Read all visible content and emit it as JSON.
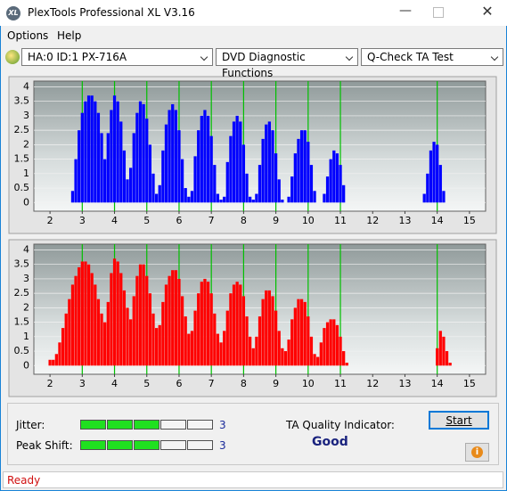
{
  "window": {
    "title": "PlexTools Professional XL V3.16",
    "icon": "XL"
  },
  "menu": [
    "Options",
    "Help"
  ],
  "toolbar": {
    "drive": "HA:0 ID:1  PX-716A",
    "function": "DVD Diagnostic Functions",
    "test": "Q-Check TA Test"
  },
  "chart_data": [
    {
      "type": "bar",
      "color": "#0000ff",
      "marker_color": "#00c000",
      "markers": [
        3,
        4,
        5,
        6,
        7,
        8,
        9,
        10,
        11,
        14
      ],
      "xlim": [
        1.5,
        15.5
      ],
      "xticks": [
        2,
        3,
        4,
        5,
        6,
        7,
        8,
        9,
        10,
        11,
        12,
        13,
        14,
        15
      ],
      "ylim": [
        -0.3,
        4.2
      ],
      "yticks": [
        0,
        0.5,
        1,
        1.5,
        2,
        2.5,
        3,
        3.5,
        4
      ],
      "grid": true,
      "x": [
        2.6,
        2.7,
        2.8,
        2.9,
        3.0,
        3.1,
        3.2,
        3.3,
        3.4,
        3.5,
        3.6,
        3.7,
        3.8,
        3.9,
        4.0,
        4.1,
        4.2,
        4.3,
        4.4,
        4.5,
        4.6,
        4.7,
        4.8,
        4.9,
        5.0,
        5.1,
        5.2,
        5.3,
        5.4,
        5.5,
        5.6,
        5.7,
        5.8,
        5.9,
        6.0,
        6.1,
        6.2,
        6.3,
        6.4,
        6.5,
        6.6,
        6.7,
        6.8,
        6.9,
        7.0,
        7.1,
        7.2,
        7.3,
        7.4,
        7.5,
        7.6,
        7.7,
        7.8,
        7.9,
        8.0,
        8.1,
        8.2,
        8.3,
        8.4,
        8.5,
        8.6,
        8.7,
        8.8,
        8.9,
        9.0,
        9.1,
        9.2,
        9.3,
        9.4,
        9.5,
        9.6,
        9.7,
        9.8,
        9.9,
        10.0,
        10.1,
        10.2,
        10.3,
        10.4,
        10.5,
        10.6,
        10.7,
        10.8,
        10.9,
        11.0,
        11.1,
        11.2,
        13.6,
        13.7,
        13.8,
        13.9,
        14.0,
        14.1,
        14.2,
        14.3
      ],
      "values": [
        0,
        0.4,
        1.5,
        2.5,
        3.1,
        3.5,
        3.7,
        3.7,
        3.5,
        3.1,
        2.4,
        1.5,
        2.4,
        3.2,
        3.7,
        3.5,
        2.8,
        1.8,
        0.8,
        1.2,
        2.4,
        3.1,
        3.5,
        3.4,
        2.9,
        2.0,
        1.0,
        0.3,
        0.6,
        1.8,
        2.7,
        3.2,
        3.4,
        3.2,
        2.5,
        1.5,
        0.5,
        0.2,
        0.4,
        1.6,
        2.5,
        3.0,
        3.2,
        3.0,
        2.3,
        1.3,
        0.3,
        0.1,
        0.2,
        1.4,
        2.3,
        2.8,
        3.0,
        2.8,
        2.0,
        1.0,
        0.2,
        0.1,
        0.3,
        1.3,
        2.2,
        2.7,
        2.8,
        2.5,
        1.7,
        0.8,
        0.1,
        0,
        0.2,
        0.9,
        1.7,
        2.2,
        2.5,
        2.5,
        2.1,
        1.3,
        0.4,
        0,
        0,
        0.3,
        0.9,
        1.5,
        1.8,
        1.7,
        1.3,
        0.6,
        0,
        0.3,
        1.0,
        1.8,
        2.1,
        2.0,
        1.3,
        0.4,
        0
      ]
    },
    {
      "type": "bar",
      "color": "#ff0000",
      "marker_color": "#00c000",
      "markers": [
        3,
        4,
        5,
        6,
        7,
        8,
        9,
        10,
        11,
        14
      ],
      "xlim": [
        1.5,
        15.5
      ],
      "xticks": [
        2,
        3,
        4,
        5,
        6,
        7,
        8,
        9,
        10,
        11,
        12,
        13,
        14,
        15
      ],
      "ylim": [
        -0.3,
        4.2
      ],
      "yticks": [
        0,
        0.5,
        1,
        1.5,
        2,
        2.5,
        3,
        3.5,
        4
      ],
      "grid": true,
      "x": [
        2.0,
        2.1,
        2.2,
        2.3,
        2.4,
        2.5,
        2.6,
        2.7,
        2.8,
        2.9,
        3.0,
        3.1,
        3.2,
        3.3,
        3.4,
        3.5,
        3.6,
        3.7,
        3.8,
        3.9,
        4.0,
        4.1,
        4.2,
        4.3,
        4.4,
        4.5,
        4.6,
        4.7,
        4.8,
        4.9,
        5.0,
        5.1,
        5.2,
        5.3,
        5.4,
        5.5,
        5.6,
        5.7,
        5.8,
        5.9,
        6.0,
        6.1,
        6.2,
        6.3,
        6.4,
        6.5,
        6.6,
        6.7,
        6.8,
        6.9,
        7.0,
        7.1,
        7.2,
        7.3,
        7.4,
        7.5,
        7.6,
        7.7,
        7.8,
        7.9,
        8.0,
        8.1,
        8.2,
        8.3,
        8.4,
        8.5,
        8.6,
        8.7,
        8.8,
        8.9,
        9.0,
        9.1,
        9.2,
        9.3,
        9.4,
        9.5,
        9.6,
        9.7,
        9.8,
        9.9,
        10.0,
        10.1,
        10.2,
        10.3,
        10.4,
        10.5,
        10.6,
        10.7,
        10.8,
        10.9,
        11.0,
        11.1,
        11.2,
        11.3,
        13.9,
        14.0,
        14.1,
        14.2,
        14.3,
        14.4
      ],
      "values": [
        0.2,
        0.2,
        0.4,
        0.8,
        1.3,
        1.8,
        2.3,
        2.8,
        3.1,
        3.4,
        3.6,
        3.6,
        3.5,
        3.2,
        2.8,
        2.3,
        1.8,
        1.5,
        2.2,
        3.2,
        3.7,
        3.6,
        3.2,
        2.6,
        2.0,
        1.6,
        2.4,
        3.1,
        3.5,
        3.5,
        3.1,
        2.5,
        1.8,
        1.3,
        1.4,
        2.2,
        2.8,
        3.1,
        3.3,
        3.3,
        3.0,
        2.4,
        1.7,
        1.1,
        1.2,
        1.9,
        2.5,
        2.9,
        3.0,
        2.9,
        2.5,
        1.8,
        1.1,
        0.8,
        1.2,
        1.9,
        2.5,
        2.8,
        2.9,
        2.8,
        2.4,
        1.7,
        1.0,
        0.6,
        1.0,
        1.7,
        2.3,
        2.6,
        2.6,
        2.4,
        1.9,
        1.2,
        0.6,
        0.5,
        0.9,
        1.6,
        2.0,
        2.3,
        2.3,
        2.2,
        1.7,
        1.0,
        0.4,
        0.3,
        0.8,
        1.3,
        1.5,
        1.6,
        1.6,
        1.4,
        1.0,
        0.5,
        0.1,
        0,
        0,
        0.6,
        1.2,
        1.0,
        0.5,
        0.1
      ]
    }
  ],
  "indicators": {
    "jitter_label": "Jitter:",
    "jitter": 3,
    "peak_shift_label": "Peak Shift:",
    "peak_shift": 3,
    "cells": 5,
    "ta_label": "TA Quality Indicator:",
    "ta_value": "Good"
  },
  "buttons": {
    "start": "Start"
  },
  "status": "Ready"
}
